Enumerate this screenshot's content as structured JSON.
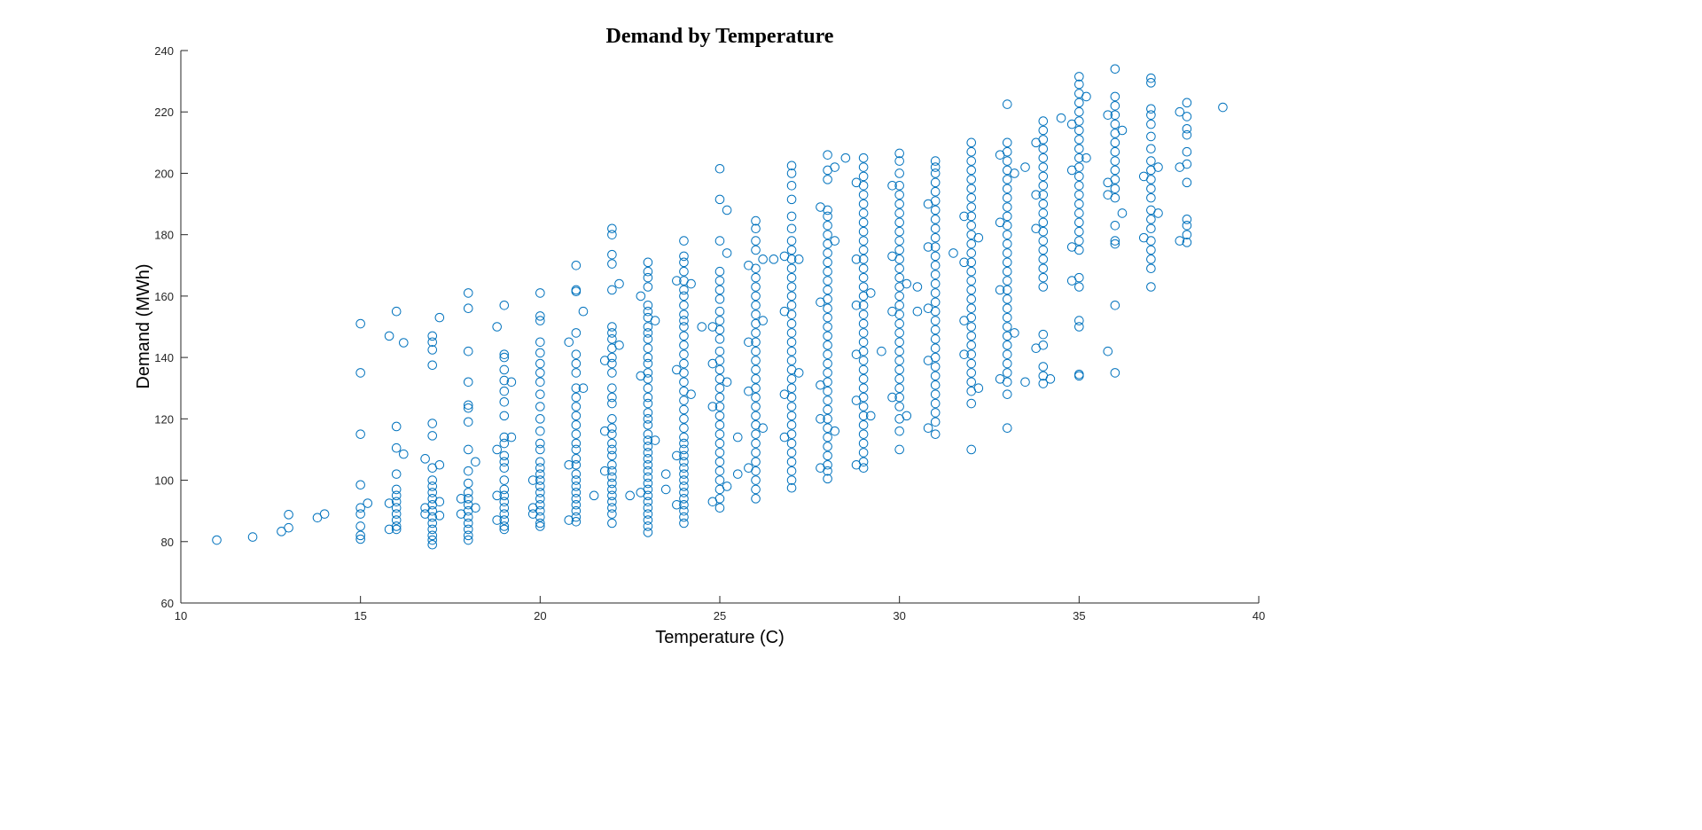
{
  "chart_data": {
    "type": "scatter",
    "title": "Demand by Temperature",
    "xlabel": "Temperature (C)",
    "ylabel": "Demand (MWh)",
    "xlim": [
      10,
      40
    ],
    "ylim": [
      60,
      240
    ],
    "xticks": [
      10,
      15,
      20,
      25,
      30,
      35,
      40
    ],
    "yticks": [
      60,
      80,
      100,
      120,
      140,
      160,
      180,
      200,
      220,
      240
    ],
    "grid": false,
    "marker": "open-circle",
    "color": "#0072BD",
    "points": [
      [
        11,
        [
          80.5
        ]
      ],
      [
        12,
        [
          81.5
        ]
      ],
      [
        12.8,
        [
          83.3
        ]
      ],
      [
        13,
        [
          84.5,
          88.8
        ]
      ],
      [
        13.8,
        [
          87.8
        ]
      ],
      [
        14,
        [
          89
        ]
      ],
      [
        15,
        [
          151,
          135,
          115,
          98.5,
          91,
          89,
          85,
          82,
          80.8
        ]
      ],
      [
        15.2,
        [
          92.5
        ]
      ],
      [
        15.8,
        [
          147,
          92.5,
          84
        ]
      ],
      [
        16,
        [
          155,
          117.5,
          110.5,
          102,
          97,
          95,
          93,
          91,
          89,
          87,
          85,
          84
        ]
      ],
      [
        16.2,
        [
          144.8,
          108.5
        ]
      ],
      [
        16.8,
        [
          107,
          91,
          89
        ]
      ],
      [
        17,
        [
          147,
          145,
          142.5,
          137.5,
          118.5,
          114.5,
          104,
          100,
          98,
          96,
          94,
          92,
          90,
          88,
          86,
          84,
          82,
          80.5,
          79
        ]
      ],
      [
        17.2,
        [
          153,
          105,
          93,
          88.5
        ]
      ],
      [
        17.8,
        [
          89,
          94
        ]
      ],
      [
        18,
        [
          161,
          156,
          142,
          132,
          124.5,
          123.5,
          119,
          110,
          103,
          99,
          96,
          94,
          92,
          90,
          88,
          86,
          84,
          82,
          80.5
        ]
      ],
      [
        18.2,
        [
          106,
          91
        ]
      ],
      [
        18.8,
        [
          150,
          110,
          95,
          87
        ]
      ],
      [
        19,
        [
          157,
          141,
          140,
          136,
          132.5,
          129,
          125.5,
          121,
          114,
          112,
          108,
          106,
          104,
          100,
          97,
          95,
          93,
          91,
          89,
          87,
          85,
          84
        ]
      ],
      [
        19.2,
        [
          132,
          114
        ]
      ],
      [
        19.8,
        [
          100,
          91,
          89
        ]
      ],
      [
        20,
        [
          161,
          153.5,
          152,
          145,
          141.5,
          138,
          135,
          132,
          128,
          124,
          120,
          116,
          112,
          110,
          106,
          104,
          102,
          100,
          98,
          96,
          94,
          92,
          90,
          88,
          86,
          85
        ]
      ],
      [
        20.8,
        [
          145,
          105,
          87
        ]
      ],
      [
        21,
        [
          170,
          162,
          161.5,
          148,
          141,
          138,
          135,
          130,
          127,
          124,
          121,
          118,
          115,
          112,
          110,
          107,
          105,
          102,
          100,
          98,
          96,
          94,
          92,
          90,
          88,
          86.5
        ]
      ],
      [
        21.2,
        [
          155,
          130
        ]
      ],
      [
        21.5,
        [
          95
        ]
      ],
      [
        21.8,
        [
          139,
          116,
          103
        ]
      ],
      [
        22,
        [
          182,
          180,
          173.5,
          170.5,
          162,
          150,
          148,
          146,
          143,
          140,
          138,
          135,
          130,
          127,
          125,
          120,
          117,
          115,
          112,
          110,
          108,
          105,
          103,
          101,
          99,
          97,
          95,
          93,
          91,
          89,
          86
        ]
      ],
      [
        22.2,
        [
          164,
          144
        ]
      ],
      [
        22.5,
        [
          95
        ]
      ],
      [
        22.8,
        [
          160,
          134,
          96
        ]
      ],
      [
        23,
        [
          171,
          168,
          166,
          163,
          157,
          155,
          153,
          150,
          148,
          146,
          143,
          140,
          138,
          135,
          133,
          130,
          127,
          125,
          122,
          120,
          118,
          115,
          113,
          111,
          109,
          107,
          105,
          103,
          101,
          99,
          97,
          95,
          93,
          91,
          89,
          87,
          85,
          83
        ]
      ],
      [
        23.2,
        [
          152,
          113
        ]
      ],
      [
        23.5,
        [
          102,
          97
        ]
      ],
      [
        23.8,
        [
          165,
          136,
          108,
          92
        ]
      ],
      [
        24,
        [
          178,
          173,
          171,
          168,
          165,
          162,
          160,
          157,
          154,
          152,
          150,
          147,
          144,
          141,
          138,
          135,
          132,
          129,
          126,
          123,
          120,
          117,
          114,
          112,
          110,
          108,
          106,
          104,
          102,
          100,
          98,
          96,
          94,
          92,
          90,
          88,
          86
        ]
      ],
      [
        24.2,
        [
          164,
          128
        ]
      ],
      [
        24.5,
        [
          150
        ]
      ],
      [
        24.8,
        [
          150,
          138,
          124,
          93
        ]
      ],
      [
        25,
        [
          201.5,
          191.5,
          178,
          168,
          165,
          162,
          159,
          155,
          152,
          149,
          146,
          142,
          139,
          136,
          133,
          130,
          127,
          124,
          121,
          118,
          115,
          112,
          109,
          106,
          103,
          100,
          97,
          94,
          91
        ]
      ],
      [
        25.2,
        [
          188,
          174,
          132,
          98
        ]
      ],
      [
        25.5,
        [
          114,
          102
        ]
      ],
      [
        25.8,
        [
          170,
          145,
          129,
          104
        ]
      ],
      [
        26,
        [
          184.5,
          182,
          178,
          175,
          169,
          166,
          163,
          160,
          157,
          154,
          151,
          148,
          145,
          142,
          139,
          136,
          133,
          130,
          127,
          124,
          121,
          118,
          115,
          112,
          109,
          106,
          103,
          100,
          97,
          94
        ]
      ],
      [
        26.2,
        [
          172,
          152,
          117
        ]
      ],
      [
        26.5,
        [
          172
        ]
      ],
      [
        26.8,
        [
          173,
          155,
          128,
          114
        ]
      ],
      [
        27,
        [
          202.5,
          200,
          196,
          191.5,
          186,
          182,
          178,
          175,
          172,
          169,
          166,
          163,
          160,
          157,
          154,
          151,
          148,
          145,
          142,
          139,
          136,
          133,
          130,
          127,
          124,
          121,
          118,
          115,
          112,
          109,
          106,
          103,
          100,
          97.5
        ]
      ],
      [
        27.2,
        [
          172,
          135
        ]
      ],
      [
        27.8,
        [
          189,
          158,
          131,
          120,
          104
        ]
      ],
      [
        28,
        [
          206,
          201,
          198,
          188,
          186,
          183,
          180,
          177,
          174,
          171,
          168,
          165,
          162,
          159,
          156,
          153,
          150,
          147,
          144,
          141,
          138,
          135,
          132,
          129,
          126,
          123,
          120,
          117,
          114,
          111,
          108,
          105,
          103,
          100.5
        ]
      ],
      [
        28.2,
        [
          202,
          178,
          116
        ]
      ],
      [
        28.5,
        [
          205
        ]
      ],
      [
        28.8,
        [
          197,
          172,
          157,
          141,
          126,
          105
        ]
      ],
      [
        29,
        [
          205,
          202,
          199,
          196,
          193,
          190,
          187,
          184,
          181,
          178,
          175,
          172,
          169,
          166,
          163,
          160,
          157,
          154,
          151,
          148,
          145,
          142,
          139,
          136,
          133,
          130,
          127,
          124,
          121,
          118,
          115,
          112,
          109,
          106,
          104
        ]
      ],
      [
        29.2,
        [
          161,
          121
        ]
      ],
      [
        29.5,
        [
          142
        ]
      ],
      [
        29.8,
        [
          196,
          173,
          155,
          127
        ]
      ],
      [
        30,
        [
          206.5,
          204,
          200,
          196,
          193,
          190,
          187,
          184,
          181,
          178,
          175,
          172,
          169,
          166,
          163,
          160,
          157,
          154,
          151,
          148,
          145,
          142,
          139,
          136,
          133,
          130,
          127,
          124,
          120,
          116,
          110
        ]
      ],
      [
        30.2,
        [
          164,
          121
        ]
      ],
      [
        30.5,
        [
          163,
          155
        ]
      ],
      [
        30.8,
        [
          190,
          176,
          156,
          139,
          117
        ]
      ],
      [
        31,
        [
          204,
          202,
          200,
          197,
          194,
          191,
          188,
          185,
          182,
          179,
          176,
          173,
          170,
          167,
          164,
          161,
          158,
          155,
          152,
          149,
          146,
          143,
          140,
          137,
          134,
          131,
          128,
          125,
          122,
          119,
          115
        ]
      ],
      [
        31.5,
        [
          174
        ]
      ],
      [
        31.8,
        [
          186,
          171,
          152,
          141
        ]
      ],
      [
        32,
        [
          210,
          207,
          204,
          201,
          198,
          195,
          192,
          189,
          186,
          183,
          180,
          177,
          174,
          171,
          168,
          165,
          162,
          159,
          156,
          153,
          150,
          147,
          144,
          141,
          138,
          135,
          132,
          129,
          125,
          110
        ]
      ],
      [
        32.2,
        [
          179,
          130
        ]
      ],
      [
        32.8,
        [
          206,
          184,
          162,
          133
        ]
      ],
      [
        33,
        [
          222.5,
          210,
          207,
          204,
          201,
          198,
          195,
          192,
          189,
          186,
          183,
          180,
          177,
          174,
          171,
          168,
          165,
          162,
          159,
          156,
          153,
          150,
          147,
          144,
          141,
          138,
          135,
          132,
          128,
          117
        ]
      ],
      [
        33.2,
        [
          200,
          148
        ]
      ],
      [
        33.5,
        [
          202,
          132
        ]
      ],
      [
        33.8,
        [
          210,
          193,
          182,
          143
        ]
      ],
      [
        34,
        [
          217,
          214,
          211,
          208,
          205,
          202,
          199,
          196,
          193,
          190,
          187,
          184,
          181,
          178,
          175,
          172,
          169,
          166,
          163,
          147.5,
          144,
          137,
          134,
          131.5
        ]
      ],
      [
        34.2,
        [
          133
        ]
      ],
      [
        34.5,
        [
          218
        ]
      ],
      [
        34.8,
        [
          216,
          201,
          176,
          165
        ]
      ],
      [
        35,
        [
          231.5,
          229,
          226,
          223,
          220,
          217,
          214,
          211,
          208,
          205,
          202,
          199,
          196,
          193,
          190,
          187,
          184,
          181,
          178,
          175,
          166,
          163,
          152,
          150,
          134,
          134.5
        ]
      ],
      [
        35.2,
        [
          225,
          205
        ]
      ],
      [
        35.8,
        [
          219,
          197,
          193,
          142
        ]
      ],
      [
        36,
        [
          234,
          225,
          222,
          219,
          216,
          213,
          210,
          207,
          204,
          201,
          198,
          195,
          192,
          183,
          178,
          177,
          157,
          135
        ]
      ],
      [
        36.2,
        [
          214,
          187
        ]
      ],
      [
        36.8,
        [
          179,
          199
        ]
      ],
      [
        37,
        [
          231,
          229.5,
          221,
          219,
          216,
          212,
          208,
          204,
          201,
          198,
          195,
          192,
          188,
          185,
          182,
          178,
          175,
          172,
          169,
          163
        ]
      ],
      [
        37.2,
        [
          202,
          187
        ]
      ],
      [
        37.8,
        [
          220,
          202,
          178
        ]
      ],
      [
        38,
        [
          223,
          218.5,
          214.5,
          212.5,
          207,
          203,
          197,
          185,
          183,
          180,
          177.5
        ]
      ],
      [
        39,
        [
          221.5
        ]
      ]
    ]
  }
}
